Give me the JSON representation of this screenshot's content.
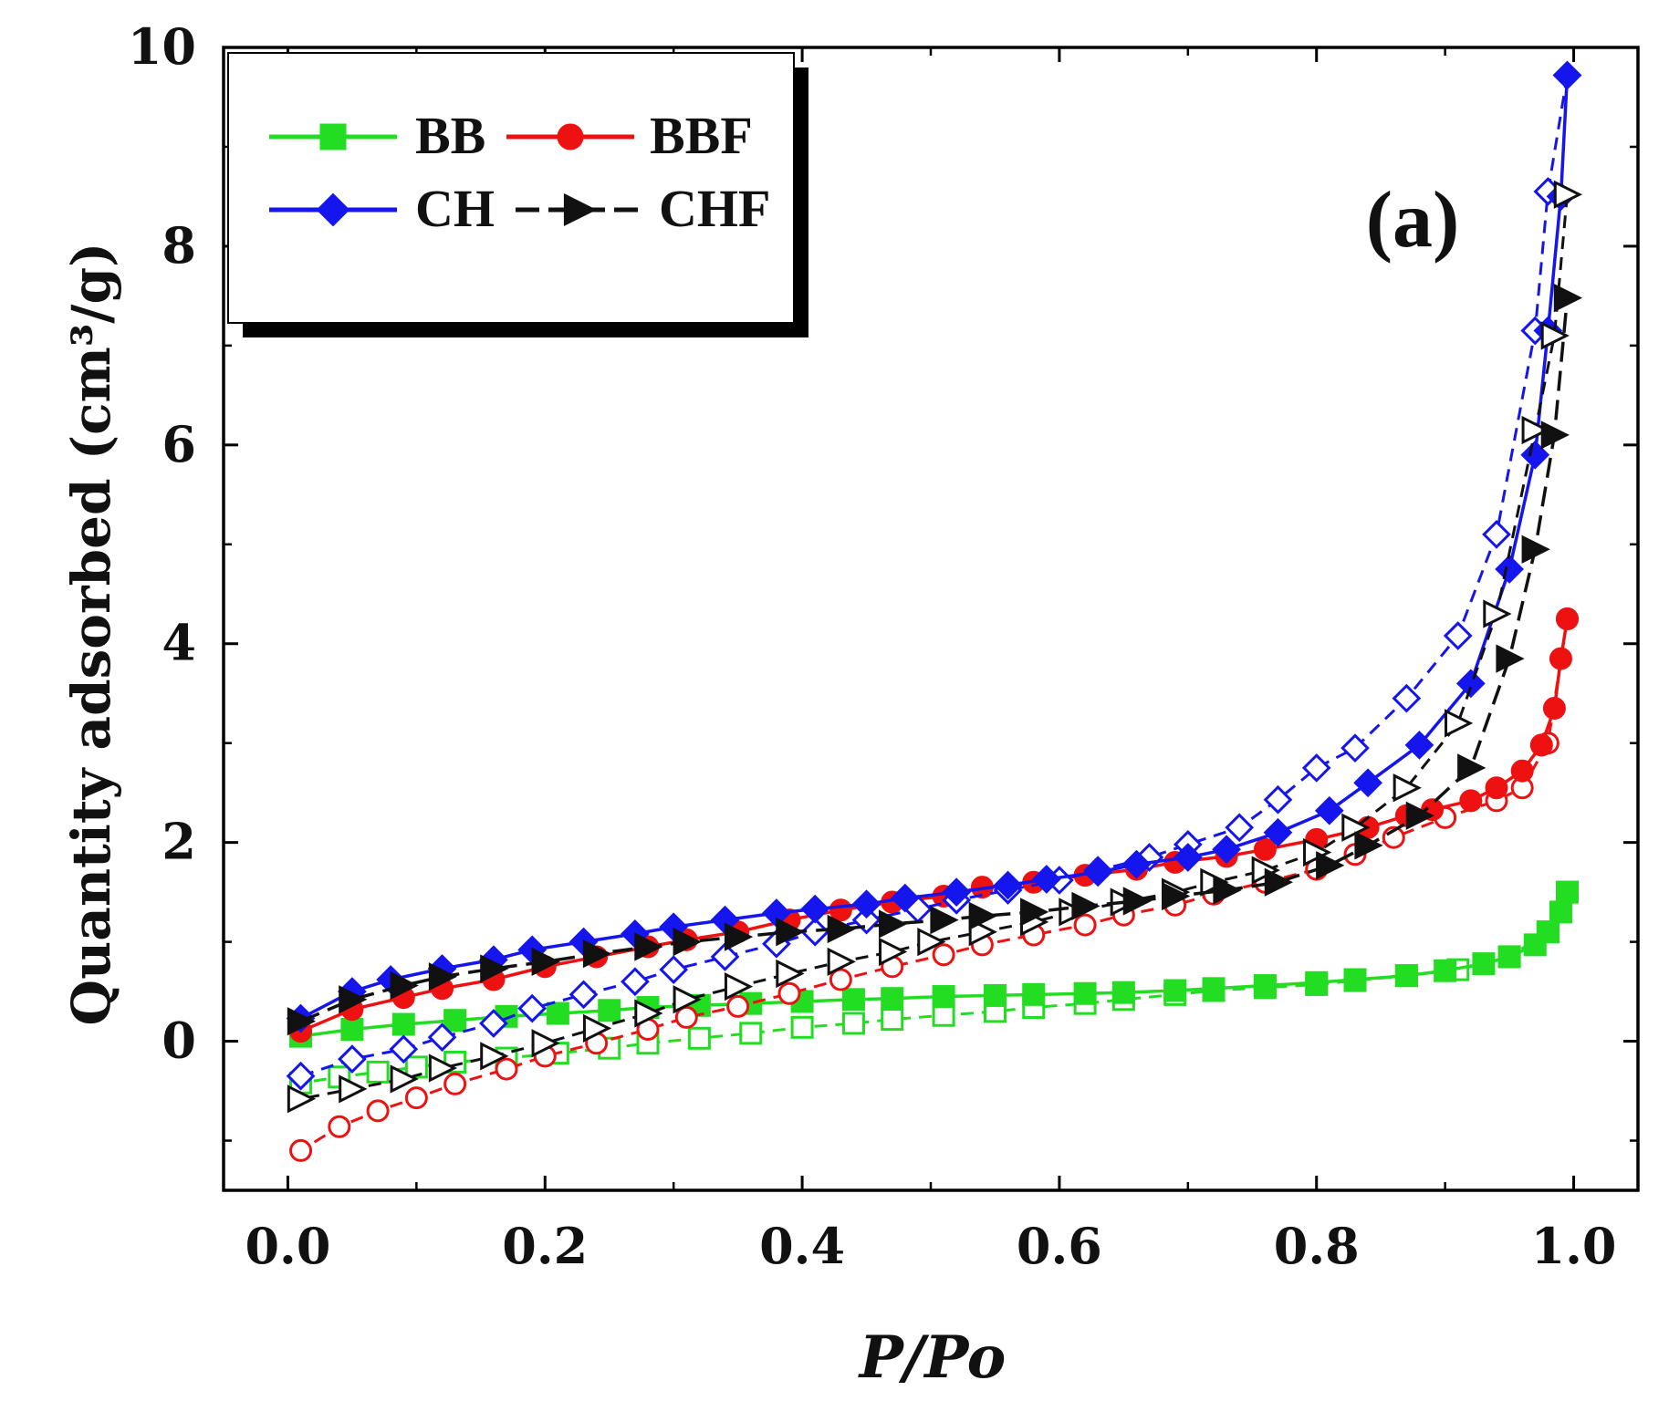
{
  "chart_data": {
    "type": "line",
    "title": "",
    "panel_label": "(a)",
    "xlabel": "P/Po",
    "ylabel": "Quantity adsorbed (cm³/g)",
    "xlim": [
      -0.05,
      1.05
    ],
    "ylim": [
      -1.5,
      10
    ],
    "x_ticks": [
      0.0,
      0.2,
      0.4,
      0.6,
      0.8,
      1.0
    ],
    "x_tick_labels": [
      "0.0",
      "0.2",
      "0.4",
      "0.6",
      "0.8",
      "1.0"
    ],
    "y_ticks": [
      0,
      2,
      4,
      6,
      8,
      10
    ],
    "y_tick_labels": [
      "0",
      "2",
      "4",
      "6",
      "8",
      "10"
    ],
    "grid": false,
    "legend": {
      "position": "top-left",
      "columns": 2
    },
    "series": [
      {
        "name": "BB",
        "color": "#22dd22",
        "marker": "square",
        "dash": "solid",
        "adsorption": {
          "x": [
            0.01,
            0.05,
            0.09,
            0.13,
            0.17,
            0.21,
            0.25,
            0.28,
            0.32,
            0.36,
            0.4,
            0.44,
            0.47,
            0.51,
            0.55,
            0.58,
            0.62,
            0.65,
            0.69,
            0.72,
            0.76,
            0.8,
            0.83,
            0.87,
            0.9,
            0.93,
            0.95,
            0.97,
            0.98,
            0.99,
            0.995
          ],
          "y": [
            0.05,
            0.12,
            0.17,
            0.21,
            0.25,
            0.28,
            0.31,
            0.34,
            0.36,
            0.38,
            0.4,
            0.42,
            0.43,
            0.45,
            0.46,
            0.47,
            0.48,
            0.49,
            0.51,
            0.53,
            0.56,
            0.59,
            0.62,
            0.66,
            0.71,
            0.78,
            0.85,
            0.97,
            1.1,
            1.3,
            1.5
          ]
        },
        "desorption": {
          "x": [
            0.995,
            0.98,
            0.95,
            0.91,
            0.87,
            0.83,
            0.8,
            0.76,
            0.72,
            0.69,
            0.65,
            0.62,
            0.58,
            0.55,
            0.51,
            0.47,
            0.44,
            0.4,
            0.36,
            0.32,
            0.28,
            0.25,
            0.21,
            0.17,
            0.13,
            0.1,
            0.07,
            0.04,
            0.01
          ],
          "y": [
            1.5,
            1.1,
            0.85,
            0.72,
            0.66,
            0.61,
            0.57,
            0.54,
            0.51,
            0.47,
            0.42,
            0.38,
            0.34,
            0.3,
            0.26,
            0.22,
            0.18,
            0.14,
            0.08,
            0.03,
            -0.02,
            -0.07,
            -0.12,
            -0.17,
            -0.21,
            -0.26,
            -0.31,
            -0.36,
            -0.42
          ]
        }
      },
      {
        "name": "BBF",
        "color": "#ee1111",
        "marker": "circle",
        "dash": "solid",
        "adsorption": {
          "x": [
            0.01,
            0.05,
            0.09,
            0.12,
            0.16,
            0.2,
            0.24,
            0.28,
            0.31,
            0.35,
            0.39,
            0.43,
            0.47,
            0.51,
            0.54,
            0.58,
            0.62,
            0.66,
            0.69,
            0.73,
            0.76,
            0.8,
            0.84,
            0.87,
            0.89,
            0.92,
            0.94,
            0.96,
            0.975,
            0.985,
            0.99,
            0.995
          ],
          "y": [
            0.1,
            0.32,
            0.44,
            0.53,
            0.62,
            0.75,
            0.85,
            0.95,
            1.02,
            1.1,
            1.22,
            1.32,
            1.4,
            1.46,
            1.55,
            1.6,
            1.67,
            1.73,
            1.8,
            1.86,
            1.93,
            2.03,
            2.15,
            2.27,
            2.33,
            2.42,
            2.55,
            2.72,
            2.98,
            3.35,
            3.85,
            4.25
          ]
        },
        "desorption": {
          "x": [
            0.995,
            0.98,
            0.96,
            0.94,
            0.9,
            0.86,
            0.83,
            0.8,
            0.76,
            0.72,
            0.69,
            0.65,
            0.62,
            0.58,
            0.54,
            0.51,
            0.47,
            0.43,
            0.39,
            0.35,
            0.31,
            0.28,
            0.24,
            0.2,
            0.17,
            0.13,
            0.1,
            0.07,
            0.04,
            0.01
          ],
          "y": [
            4.25,
            3.0,
            2.55,
            2.42,
            2.25,
            2.05,
            1.88,
            1.73,
            1.6,
            1.48,
            1.37,
            1.27,
            1.17,
            1.07,
            0.97,
            0.87,
            0.75,
            0.62,
            0.48,
            0.35,
            0.24,
            0.12,
            -0.02,
            -0.15,
            -0.28,
            -0.43,
            -0.57,
            -0.7,
            -0.86,
            -1.1
          ]
        }
      },
      {
        "name": "CH",
        "color": "#1515ee",
        "marker": "diamond",
        "dash": "solid",
        "adsorption": {
          "x": [
            0.01,
            0.05,
            0.08,
            0.12,
            0.16,
            0.19,
            0.23,
            0.27,
            0.3,
            0.34,
            0.38,
            0.41,
            0.45,
            0.48,
            0.52,
            0.56,
            0.59,
            0.63,
            0.66,
            0.7,
            0.73,
            0.77,
            0.81,
            0.84,
            0.88,
            0.92,
            0.95,
            0.97,
            0.98,
            0.99,
            0.995
          ],
          "y": [
            0.23,
            0.5,
            0.62,
            0.73,
            0.82,
            0.92,
            1.0,
            1.08,
            1.15,
            1.22,
            1.29,
            1.33,
            1.38,
            1.44,
            1.5,
            1.57,
            1.63,
            1.7,
            1.78,
            1.85,
            1.93,
            2.1,
            2.32,
            2.6,
            2.98,
            3.6,
            4.75,
            5.9,
            7.15,
            8.5,
            9.72
          ]
        },
        "desorption": {
          "x": [
            0.995,
            0.98,
            0.97,
            0.94,
            0.91,
            0.87,
            0.83,
            0.8,
            0.77,
            0.74,
            0.7,
            0.67,
            0.63,
            0.6,
            0.56,
            0.52,
            0.49,
            0.45,
            0.41,
            0.38,
            0.34,
            0.3,
            0.27,
            0.23,
            0.19,
            0.16,
            0.12,
            0.09,
            0.05,
            0.01
          ],
          "y": [
            9.72,
            8.55,
            7.15,
            5.1,
            4.08,
            3.45,
            2.95,
            2.75,
            2.43,
            2.15,
            1.98,
            1.85,
            1.72,
            1.62,
            1.52,
            1.42,
            1.33,
            1.22,
            1.1,
            0.98,
            0.85,
            0.72,
            0.6,
            0.47,
            0.33,
            0.18,
            0.04,
            -0.08,
            -0.18,
            -0.35
          ]
        }
      },
      {
        "name": "CHF",
        "color": "#111111",
        "marker": "triangle-right",
        "dash": "dashed",
        "adsorption": {
          "x": [
            0.01,
            0.05,
            0.09,
            0.12,
            0.16,
            0.2,
            0.24,
            0.28,
            0.31,
            0.35,
            0.39,
            0.43,
            0.47,
            0.51,
            0.54,
            0.58,
            0.62,
            0.66,
            0.69,
            0.73,
            0.77,
            0.81,
            0.84,
            0.88,
            0.92,
            0.95,
            0.97,
            0.985,
            0.995
          ],
          "y": [
            0.2,
            0.42,
            0.56,
            0.65,
            0.73,
            0.8,
            0.88,
            0.95,
            1.0,
            1.05,
            1.1,
            1.13,
            1.18,
            1.22,
            1.26,
            1.3,
            1.36,
            1.41,
            1.46,
            1.52,
            1.6,
            1.77,
            1.97,
            2.27,
            2.75,
            3.85,
            4.95,
            6.1,
            7.48
          ]
        },
        "desorption": {
          "x": [
            0.995,
            0.985,
            0.97,
            0.94,
            0.91,
            0.87,
            0.83,
            0.8,
            0.76,
            0.72,
            0.69,
            0.65,
            0.61,
            0.58,
            0.54,
            0.5,
            0.47,
            0.43,
            0.39,
            0.35,
            0.31,
            0.28,
            0.24,
            0.2,
            0.16,
            0.12,
            0.09,
            0.05,
            0.01
          ],
          "y": [
            8.52,
            7.1,
            6.15,
            4.3,
            3.2,
            2.55,
            2.15,
            1.9,
            1.72,
            1.6,
            1.5,
            1.4,
            1.3,
            1.2,
            1.1,
            1.0,
            0.9,
            0.8,
            0.68,
            0.55,
            0.42,
            0.28,
            0.13,
            -0.02,
            -0.15,
            -0.27,
            -0.38,
            -0.48,
            -0.58
          ]
        }
      }
    ]
  }
}
